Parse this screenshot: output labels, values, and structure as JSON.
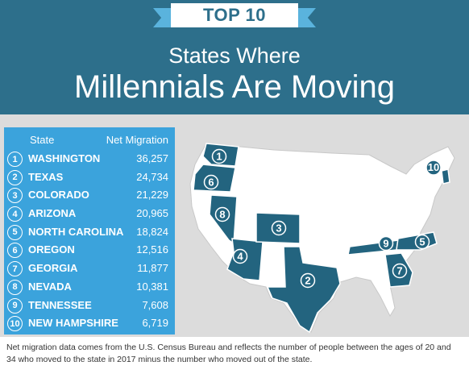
{
  "badge": "TOP 10",
  "title_line1": "States Where",
  "title_line2": "Millennials Are Moving",
  "table": {
    "col_state": "State",
    "col_net": "Net Migration",
    "rows": [
      {
        "rank": "1",
        "state": "WASHINGTON",
        "value": "36,257"
      },
      {
        "rank": "2",
        "state": "TEXAS",
        "value": "24,734"
      },
      {
        "rank": "3",
        "state": "COLORADO",
        "value": "21,229"
      },
      {
        "rank": "4",
        "state": "ARIZONA",
        "value": "20,965"
      },
      {
        "rank": "5",
        "state": "NORTH CAROLINA",
        "value": "18,824"
      },
      {
        "rank": "6",
        "state": "OREGON",
        "value": "12,516"
      },
      {
        "rank": "7",
        "state": "GEORGIA",
        "value": "11,877"
      },
      {
        "rank": "8",
        "state": "NEVADA",
        "value": "10,381"
      },
      {
        "rank": "9",
        "state": "TENNESSEE",
        "value": "7,608"
      },
      {
        "rank": "10",
        "state": "NEW HAMPSHIRE",
        "value": "6,719"
      }
    ]
  },
  "map": {
    "markers": [
      "1",
      "2",
      "3",
      "4",
      "5",
      "6",
      "7",
      "8",
      "9",
      "10"
    ]
  },
  "footer": "Net migration data comes from the U.S. Census Bureau and reflects the number of people between the ages of 20 and 34 who moved to the state in 2017 minus the number who moved out of the state.",
  "colors": {
    "header": "#2d6f8b",
    "table": "#3ba3dc",
    "highlight_state": "#23647f",
    "map_state": "#ffffff",
    "background": "#dcdcdc"
  }
}
